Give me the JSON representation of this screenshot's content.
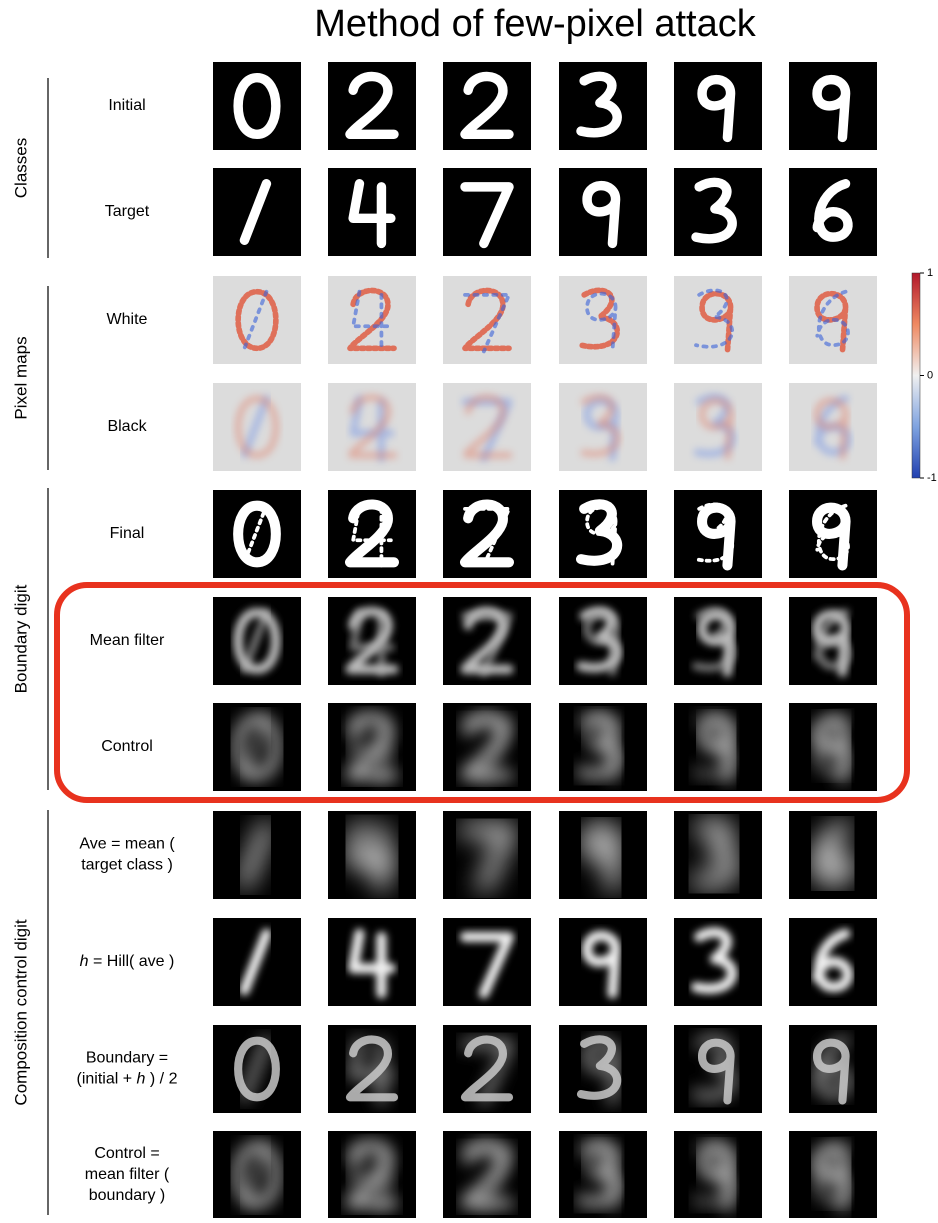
{
  "title": "Method of few-pixel attack",
  "groups": [
    {
      "label": "Classes",
      "rows": [
        {
          "label": [
            [
              "Initial"
            ]
          ]
        },
        {
          "label": [
            [
              "Target"
            ]
          ]
        }
      ]
    },
    {
      "label": "Pixel maps",
      "rows": [
        {
          "label": [
            [
              "White"
            ]
          ]
        },
        {
          "label": [
            [
              "Black"
            ]
          ]
        }
      ]
    },
    {
      "label": "Boundary digit",
      "rows": [
        {
          "label": [
            [
              "Final"
            ]
          ]
        },
        {
          "label": [
            [
              "Mean filter"
            ]
          ]
        },
        {
          "label": [
            [
              "Control"
            ]
          ]
        }
      ]
    },
    {
      "label": "Composition control digit",
      "rows": [
        {
          "label": [
            [
              "Ave = mean ("
            ],
            [
              "target class )"
            ]
          ]
        },
        {
          "label": [
            [
              {
                "text": "h",
                "italic": true
              },
              " = Hill( ave )"
            ]
          ]
        },
        {
          "label": [
            [
              "Boundary ="
            ],
            [
              "(initial  + ",
              {
                "text": "h",
                "italic": true
              },
              " ) / 2"
            ]
          ]
        },
        {
          "label": [
            [
              "Control ="
            ],
            [
              "mean filter ("
            ],
            [
              "boundary )"
            ]
          ]
        }
      ]
    }
  ],
  "colorbar": {
    "lim": [
      -1,
      1
    ],
    "ticks": [
      1,
      0,
      -1
    ]
  }
}
